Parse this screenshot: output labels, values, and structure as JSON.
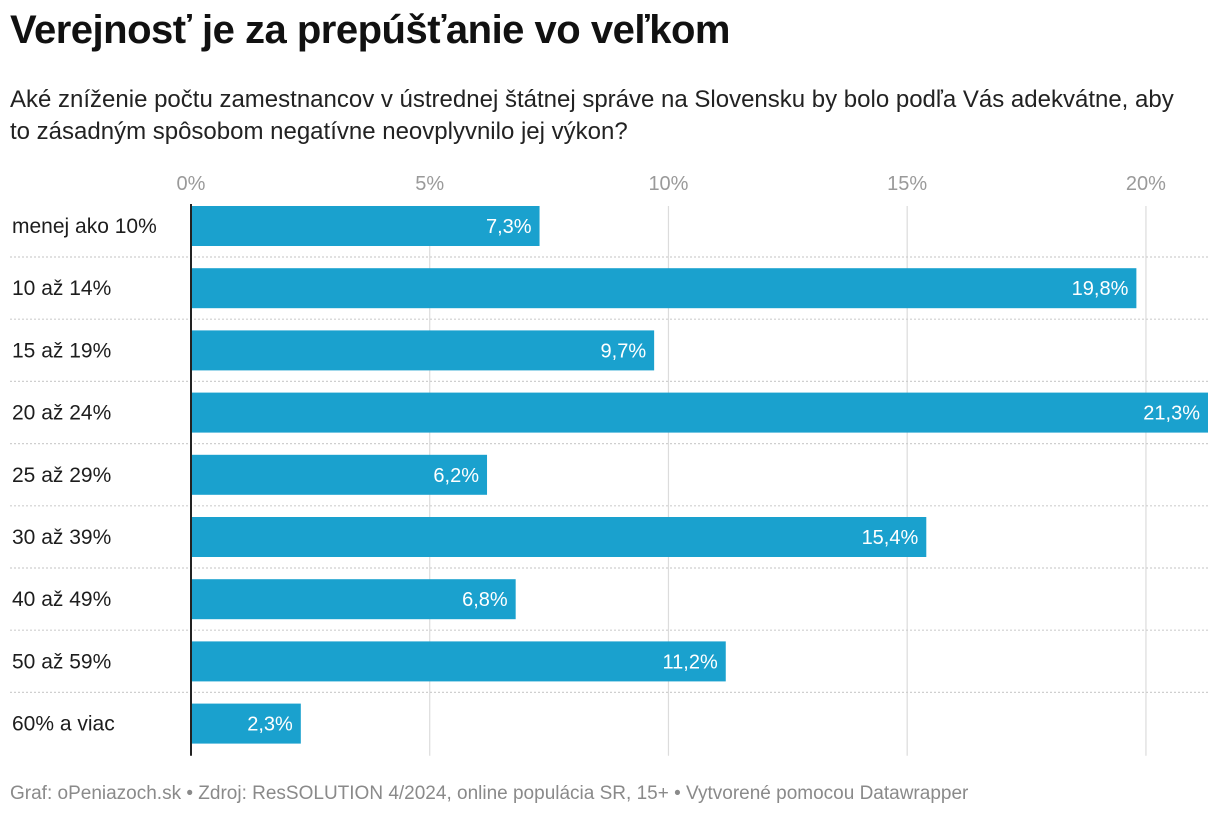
{
  "header": {
    "title": "Verejnosť je za prepúšťanie vo veľkom",
    "subtitle": "Aké zníženie počtu zamestnancov v ústrednej štátnej správe na Slovensku by bolo podľa Vás adekvátne, aby to zásadným spôsobom negatívne neovplyvnilo jej výkon?"
  },
  "chart_data": {
    "type": "bar",
    "orientation": "horizontal",
    "title": "Verejnosť je za prepúšťanie vo veľkom",
    "xlabel": "",
    "ylabel": "",
    "xlim": [
      0,
      21.3
    ],
    "ticks": [
      0,
      5,
      10,
      15,
      20
    ],
    "tick_labels": [
      "0%",
      "5%",
      "10%",
      "15%",
      "20%"
    ],
    "categories": [
      "menej ako 10%",
      "10 až 14%",
      "15 až 19%",
      "20 až 24%",
      "25 až 29%",
      "30 až 39%",
      "40 až 49%",
      "50 až 59%",
      "60% a viac"
    ],
    "values": [
      7.3,
      19.8,
      9.7,
      21.3,
      6.2,
      15.4,
      6.8,
      11.2,
      2.3
    ],
    "value_labels": [
      "7,3%",
      "19,8%",
      "9,7%",
      "21,3%",
      "6,2%",
      "15,4%",
      "6,8%",
      "11,2%",
      "2,3%"
    ],
    "bar_color": "#1aa1ce",
    "grid": true
  },
  "footer": {
    "text": "Graf: oPeniazoch.sk • Zdroj: ResSOLUTION 4/2024, online populácia SR, 15+ • Vytvorené pomocou Datawrapper"
  }
}
